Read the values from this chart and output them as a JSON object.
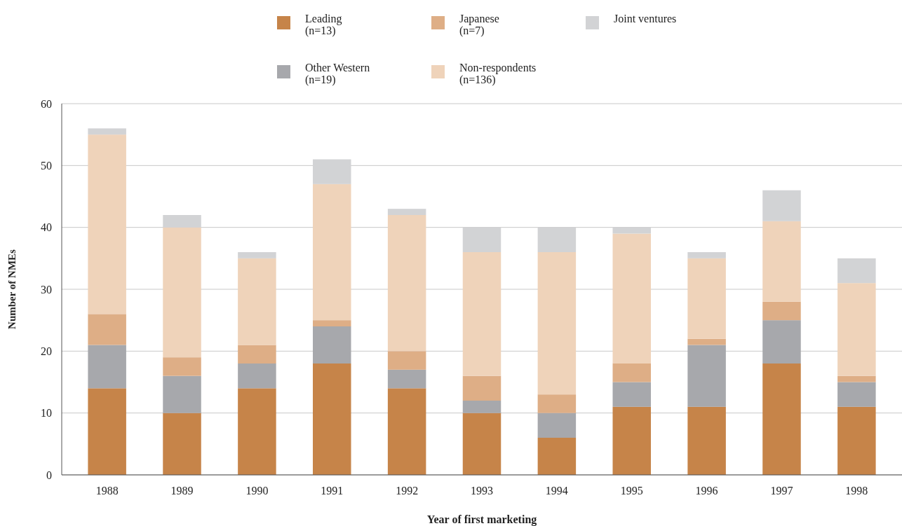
{
  "chart_data": {
    "type": "bar",
    "stacked": true,
    "xlabel": "Year of first marketing",
    "ylabel": "Number of NMEs",
    "categories": [
      "1988",
      "1989",
      "1990",
      "1991",
      "1992",
      "1993",
      "1994",
      "1995",
      "1996",
      "1997",
      "1998"
    ],
    "series": [
      {
        "name": "Leading (n=13)",
        "color": "#c68449",
        "values": [
          14,
          10,
          14,
          18,
          14,
          10,
          6,
          11,
          11,
          18,
          11
        ]
      },
      {
        "name": "Other Western (n=19)",
        "color": "#a7a8ac",
        "values": [
          7,
          6,
          4,
          6,
          3,
          2,
          4,
          4,
          10,
          7,
          4
        ]
      },
      {
        "name": "Japanese (n=7)",
        "color": "#deae86",
        "values": [
          5,
          3,
          3,
          1,
          3,
          4,
          3,
          3,
          1,
          3,
          1
        ]
      },
      {
        "name": "Non-respondents (n=136)",
        "color": "#efd3ba",
        "values": [
          29,
          21,
          14,
          22,
          22,
          20,
          23,
          21,
          13,
          13,
          15
        ]
      },
      {
        "name": "Joint ventures",
        "color": "#d2d3d5",
        "values": [
          1,
          2,
          1,
          4,
          1,
          4,
          4,
          1,
          1,
          5,
          4
        ]
      }
    ],
    "ylim": [
      0,
      60
    ],
    "yticks": [
      0,
      10,
      20,
      30,
      40,
      50,
      60
    ],
    "grid": "y",
    "legend": "top"
  }
}
